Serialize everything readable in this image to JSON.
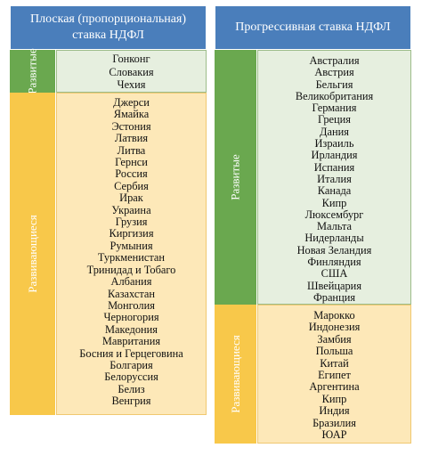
{
  "left": {
    "header": "Плоская (пропорциональная) ставка НДФЛ",
    "developed": {
      "label": "Развитые",
      "countries": [
        "Гонконг",
        "Словакия",
        "Чехия"
      ]
    },
    "developing": {
      "label": "Развивающиеся",
      "countries": [
        "Джерси",
        "Ямайка",
        "Эстония",
        "Латвия",
        "Литва",
        "Гернси",
        "Россия",
        "Сербия",
        "Ирак",
        "Украина",
        "Грузия",
        "Киргизия",
        "Румыния",
        "Туркменистан",
        "Тринидад и Тобаго",
        "Албания",
        "Казахстан",
        "Монголия",
        "Черногория",
        "Македония",
        "Мавритания",
        "Босния и Герцеговина",
        "Болгария",
        "Белоруссия",
        "Белиз",
        "Венгрия"
      ]
    }
  },
  "right": {
    "header": "Прогрессивная ставка НДФЛ",
    "developed": {
      "label": "Развитые",
      "countries": [
        "Австралия",
        "Австрия",
        "Бельгия",
        "Великобритания",
        "Германия",
        "Греция",
        "Дания",
        "Израиль",
        "Ирландия",
        "Испания",
        "Италия",
        "Канада",
        "Кипр",
        "Люксембург",
        "Мальта",
        "Нидерланды",
        "Новая Зеландия",
        "Финляндия",
        "США",
        "Швейцария",
        "Франция"
      ]
    },
    "developing": {
      "label": "Развивающиеся",
      "countries": [
        "Марокко",
        "Индонезия",
        "Замбия",
        "Польша",
        "Китай",
        "Египет",
        "Аргентина",
        "Кипр",
        "Индия",
        "Бразилия",
        "ЮАР"
      ]
    }
  },
  "colors": {
    "header": "#4a7ebb",
    "developed_side": "#6aa84f",
    "developed_list": "#e6efdf",
    "developing_side": "#f8c84a",
    "developing_list": "#fde8b8"
  }
}
